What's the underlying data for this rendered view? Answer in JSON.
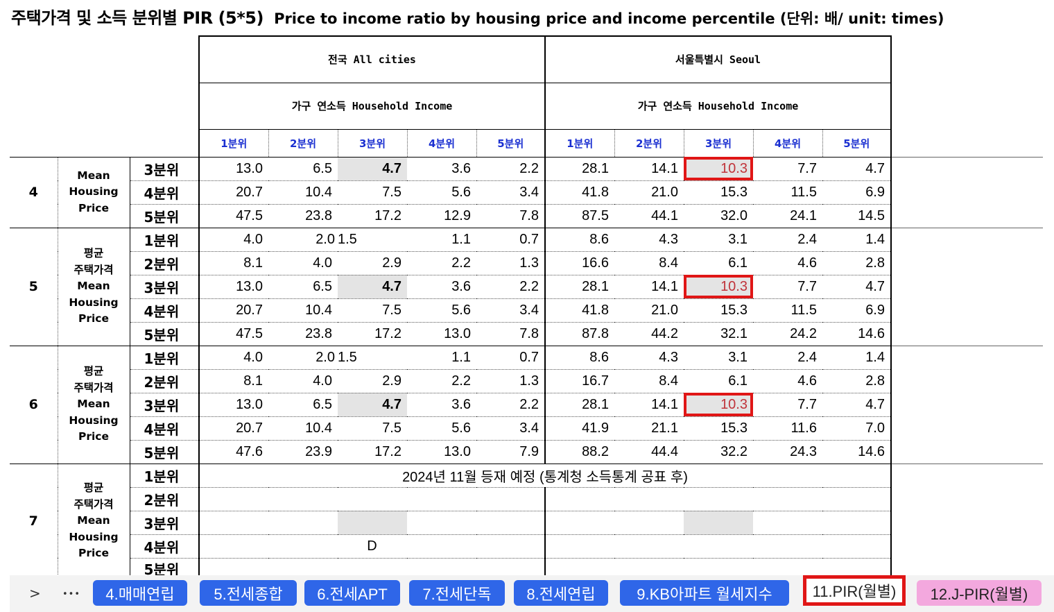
{
  "title": {
    "ko": "주택가격 및 소득 분위별 PIR (5*5)",
    "en": "Price to income ratio by housing price and income percentile  (단위: 배/ unit: times)"
  },
  "header": {
    "all_cities": "전국 All cities",
    "seoul": "서울특별시 Seoul",
    "household_income": "가구 연소득 Household Income",
    "quintiles": [
      "1분위",
      "2분위",
      "3분위",
      "4분위",
      "5분위"
    ]
  },
  "price_label": {
    "ko_1": "평균",
    "ko_2": "주택가격",
    "en_1": "Mean",
    "en_2": "Housing",
    "en_3": "Price"
  },
  "groups": [
    {
      "no": "4",
      "rows": [
        {
          "label": "3분위",
          "all": [
            "13.0",
            "6.5",
            "4.7",
            "3.6",
            "2.2"
          ],
          "seoul": [
            "28.1",
            "14.1",
            "10.3",
            "7.7",
            "4.7"
          ]
        },
        {
          "label": "4분위",
          "all": [
            "20.7",
            "10.4",
            "7.5",
            "5.6",
            "3.4"
          ],
          "seoul": [
            "41.8",
            "21.0",
            "15.3",
            "11.5",
            "6.9"
          ]
        },
        {
          "label": "5분위",
          "all": [
            "47.5",
            "23.8",
            "17.2",
            "12.9",
            "7.8"
          ],
          "seoul": [
            "87.5",
            "44.1",
            "32.0",
            "24.1",
            "14.5"
          ]
        }
      ]
    },
    {
      "no": "5",
      "rows": [
        {
          "label": "1분위",
          "all": [
            "4.0",
            "2.0",
            "1.5",
            "1.1",
            "0.7"
          ],
          "seoul": [
            "8.6",
            "4.3",
            "3.1",
            "2.4",
            "1.4"
          ]
        },
        {
          "label": "2분위",
          "all": [
            "8.1",
            "4.0",
            "2.9",
            "2.2",
            "1.3"
          ],
          "seoul": [
            "16.6",
            "8.4",
            "6.1",
            "4.6",
            "2.8"
          ]
        },
        {
          "label": "3분위",
          "all": [
            "13.0",
            "6.5",
            "4.7",
            "3.6",
            "2.2"
          ],
          "seoul": [
            "28.1",
            "14.1",
            "10.3",
            "7.7",
            "4.7"
          ]
        },
        {
          "label": "4분위",
          "all": [
            "20.7",
            "10.4",
            "7.5",
            "5.6",
            "3.4"
          ],
          "seoul": [
            "41.8",
            "21.0",
            "15.3",
            "11.5",
            "6.9"
          ]
        },
        {
          "label": "5분위",
          "all": [
            "47.5",
            "23.8",
            "17.2",
            "13.0",
            "7.8"
          ],
          "seoul": [
            "87.8",
            "44.2",
            "32.1",
            "24.2",
            "14.6"
          ]
        }
      ]
    },
    {
      "no": "6",
      "rows": [
        {
          "label": "1분위",
          "all": [
            "4.0",
            "2.0",
            "1.5",
            "1.1",
            "0.7"
          ],
          "seoul": [
            "8.6",
            "4.3",
            "3.1",
            "2.4",
            "1.4"
          ]
        },
        {
          "label": "2분위",
          "all": [
            "8.1",
            "4.0",
            "2.9",
            "2.2",
            "1.3"
          ],
          "seoul": [
            "16.7",
            "8.4",
            "6.1",
            "4.6",
            "2.8"
          ]
        },
        {
          "label": "3분위",
          "all": [
            "13.0",
            "6.5",
            "4.7",
            "3.6",
            "2.2"
          ],
          "seoul": [
            "28.1",
            "14.1",
            "10.3",
            "7.7",
            "4.7"
          ]
        },
        {
          "label": "4분위",
          "all": [
            "20.7",
            "10.4",
            "7.5",
            "5.6",
            "3.4"
          ],
          "seoul": [
            "41.9",
            "21.1",
            "15.3",
            "11.6",
            "7.0"
          ]
        },
        {
          "label": "5분위",
          "all": [
            "47.6",
            "23.9",
            "17.2",
            "13.0",
            "7.9"
          ],
          "seoul": [
            "88.2",
            "44.4",
            "32.2",
            "24.3",
            "14.6"
          ]
        }
      ]
    },
    {
      "no": "7",
      "rows": [
        {
          "label": "1분위"
        },
        {
          "label": "2분위"
        },
        {
          "label": "3분위"
        },
        {
          "label": "4분위"
        },
        {
          "label": "5분위"
        }
      ]
    }
  ],
  "row7_note": "2024년 11월 등재 예정 (통계청 소득통계 공표 후)",
  "row7_letter": "D",
  "tabs": {
    "next": ">",
    "more": "•••",
    "items": [
      {
        "label": "4.매매연립",
        "style": "blue"
      },
      {
        "label": "5.전세종합",
        "style": "blue"
      },
      {
        "label": "6.전세APT",
        "style": "blue"
      },
      {
        "label": "7.전세단독",
        "style": "blue"
      },
      {
        "label": "8.전세연립",
        "style": "blue"
      },
      {
        "label": "9.KB아파트 월세지수",
        "style": "blue"
      },
      {
        "label": "11.PIR(월별)",
        "style": "active"
      },
      {
        "label": "12.J-PIR(월별)",
        "style": "pink"
      }
    ]
  }
}
